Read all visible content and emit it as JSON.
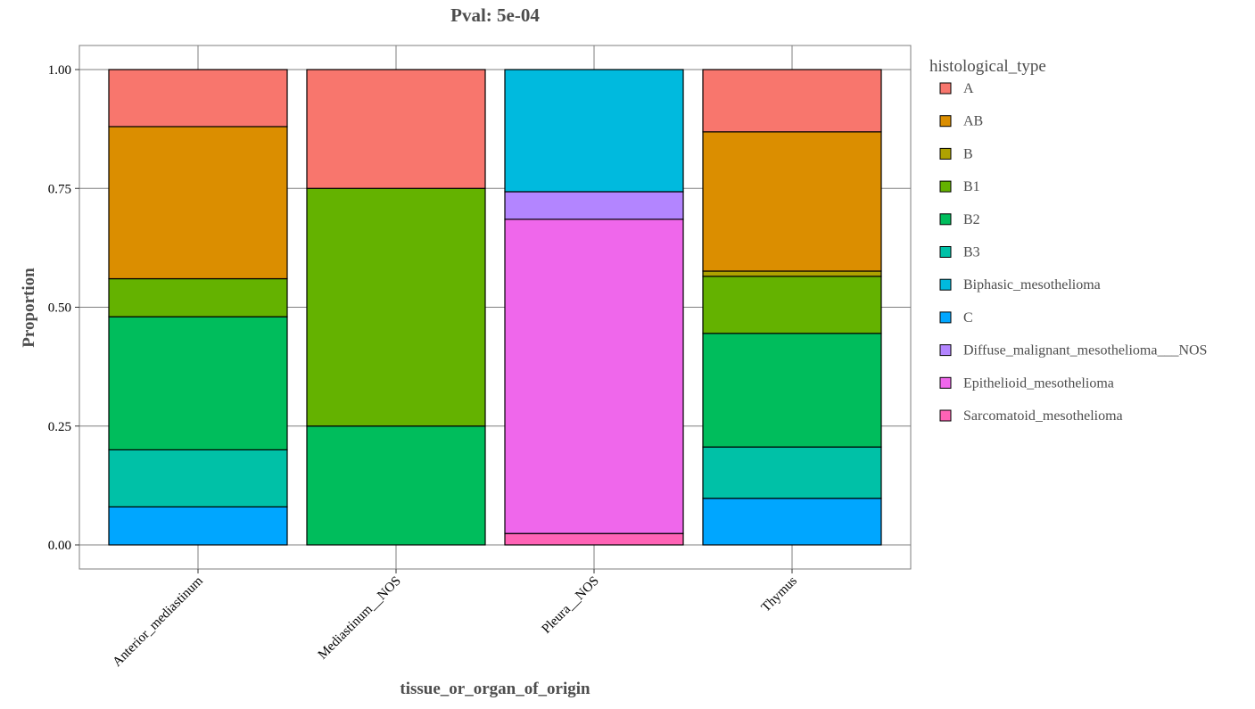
{
  "chart_data": {
    "type": "bar",
    "stacked": true,
    "title": "Pval: 5e-04",
    "xlabel": "tissue_or_organ_of_origin",
    "ylabel": "Proportion",
    "ylim": [
      0,
      1
    ],
    "yticks": [
      "0.00",
      "0.25",
      "0.50",
      "0.75",
      "1.00"
    ],
    "categories": [
      "Anterior_mediastinum",
      "Mediastinum__NOS",
      "Pleura__NOS",
      "Thymus"
    ],
    "legend_title": "histological_type",
    "legend_position": "right",
    "series": [
      {
        "name": "A",
        "color": "#F8766D",
        "values": [
          0.12,
          0.25,
          0,
          0.131
        ]
      },
      {
        "name": "AB",
        "color": "#DB8E00",
        "values": [
          0.32,
          0,
          0,
          0.293
        ]
      },
      {
        "name": "B",
        "color": "#AEA200",
        "values": [
          0,
          0,
          0,
          0.011
        ]
      },
      {
        "name": "B1",
        "color": "#64B200",
        "values": [
          0.08,
          0.5,
          0,
          0.12
        ]
      },
      {
        "name": "B2",
        "color": "#00BD5C",
        "values": [
          0.28,
          0.25,
          0,
          0.239
        ]
      },
      {
        "name": "B3",
        "color": "#00C1A7",
        "values": [
          0.12,
          0,
          0,
          0.108
        ]
      },
      {
        "name": "Biphasic_mesothelioma",
        "color": "#00BADE",
        "values": [
          0,
          0,
          0.257,
          0
        ]
      },
      {
        "name": "C",
        "color": "#00A6FF",
        "values": [
          0.08,
          0,
          0,
          0.098
        ]
      },
      {
        "name": "Diffuse_malignant_mesothelioma___NOS",
        "color": "#B385FF",
        "values": [
          0,
          0,
          0.058,
          0
        ]
      },
      {
        "name": "Epithelioid_mesothelioma",
        "color": "#EF67EB",
        "values": [
          0,
          0,
          0.661,
          0
        ]
      },
      {
        "name": "Sarcomatoid_mesothelioma",
        "color": "#FF63B6",
        "values": [
          0,
          0,
          0.024,
          0
        ]
      }
    ]
  }
}
